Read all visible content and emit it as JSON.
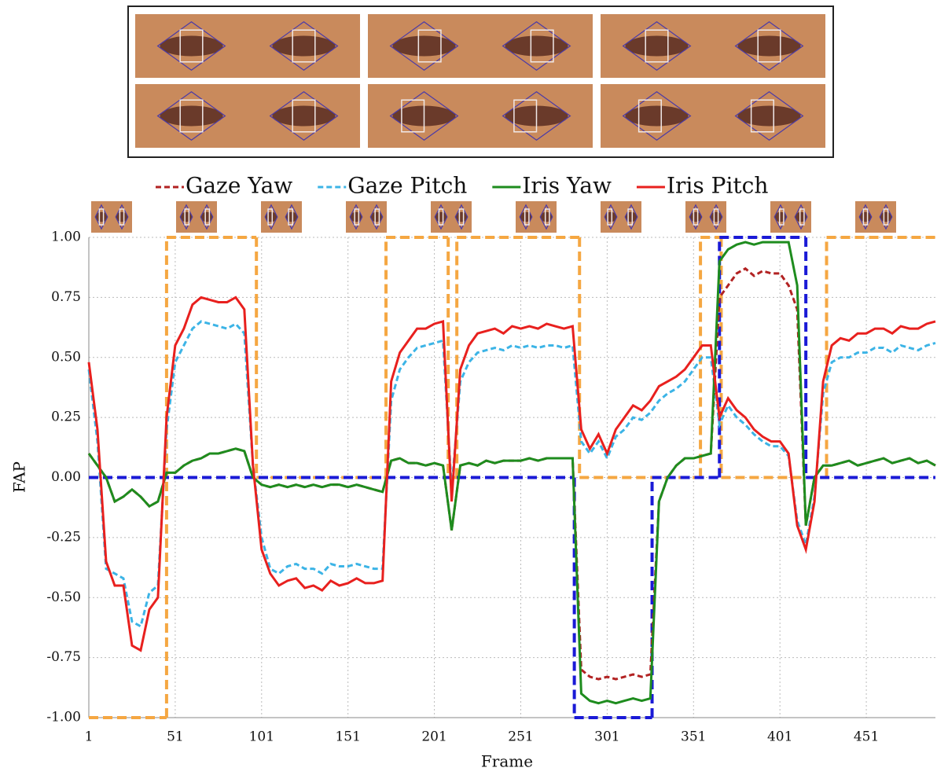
{
  "chart_data": {
    "type": "line",
    "x_label": "Frame",
    "y_label": "FAP",
    "xlim": [
      1,
      491
    ],
    "ylim": [
      -1,
      1
    ],
    "xticks": [
      1,
      51,
      101,
      151,
      201,
      251,
      301,
      351,
      401,
      451
    ],
    "yticks": [
      {
        "value": 1,
        "label": "1.00"
      },
      {
        "value": 0.75,
        "label": "0.75"
      },
      {
        "value": 0.5,
        "label": "0.50"
      },
      {
        "value": 0.25,
        "label": "0.25"
      },
      {
        "value": 0,
        "label": "0.00"
      },
      {
        "value": -0.25,
        "label": "-0.25"
      },
      {
        "value": -0.5,
        "label": "-0.50"
      },
      {
        "value": -0.75,
        "label": "-0.75"
      },
      {
        "value": -1,
        "label": "-1.00"
      }
    ],
    "grid": true,
    "x": [
      1,
      6,
      11,
      16,
      21,
      26,
      31,
      36,
      41,
      46,
      51,
      56,
      61,
      66,
      71,
      76,
      81,
      86,
      91,
      96,
      101,
      106,
      111,
      116,
      121,
      126,
      131,
      136,
      141,
      146,
      151,
      156,
      161,
      166,
      171,
      176,
      181,
      186,
      191,
      196,
      201,
      206,
      211,
      216,
      221,
      226,
      231,
      236,
      241,
      246,
      251,
      256,
      261,
      266,
      271,
      276,
      281,
      286,
      291,
      296,
      301,
      306,
      311,
      316,
      321,
      326,
      331,
      336,
      341,
      346,
      351,
      356,
      361,
      366,
      371,
      376,
      381,
      386,
      391,
      396,
      401,
      406,
      411,
      416,
      421,
      426,
      431,
      436,
      441,
      446,
      451,
      456,
      461,
      466,
      471,
      476,
      481,
      486,
      491
    ],
    "series": [
      {
        "name": "Gaze Yaw",
        "color": "#b22222",
        "dash": true,
        "values": [
          0.1,
          0.05,
          0.0,
          -0.1,
          -0.08,
          -0.05,
          -0.08,
          -0.12,
          -0.1,
          0.02,
          0.02,
          0.05,
          0.07,
          0.08,
          0.1,
          0.1,
          0.11,
          0.12,
          0.11,
          0.0,
          -0.03,
          -0.04,
          -0.03,
          -0.04,
          -0.03,
          -0.04,
          -0.03,
          -0.04,
          -0.03,
          -0.03,
          -0.04,
          -0.03,
          -0.04,
          -0.05,
          -0.06,
          0.07,
          0.08,
          0.06,
          0.06,
          0.05,
          0.06,
          0.05,
          -0.22,
          0.05,
          0.06,
          0.05,
          0.07,
          0.06,
          0.07,
          0.07,
          0.07,
          0.08,
          0.07,
          0.08,
          0.08,
          0.08,
          0.08,
          -0.8,
          -0.83,
          -0.84,
          -0.83,
          -0.84,
          -0.83,
          -0.82,
          -0.83,
          -0.82,
          -0.1,
          0.0,
          0.05,
          0.08,
          0.08,
          0.09,
          0.1,
          0.75,
          0.8,
          0.85,
          0.87,
          0.84,
          0.86,
          0.85,
          0.85,
          0.8,
          0.7,
          -0.2,
          0.0,
          0.05,
          0.05,
          0.06,
          0.07,
          0.05,
          0.06,
          0.07,
          0.08,
          0.06,
          0.07,
          0.08,
          0.06,
          0.07,
          0.05
        ]
      },
      {
        "name": "Gaze Pitch",
        "color": "#3cb4e6",
        "dash": true,
        "values": [
          0.45,
          0.15,
          -0.38,
          -0.4,
          -0.42,
          -0.6,
          -0.62,
          -0.48,
          -0.45,
          0.2,
          0.48,
          0.55,
          0.62,
          0.65,
          0.64,
          0.63,
          0.62,
          0.64,
          0.6,
          0.05,
          -0.25,
          -0.38,
          -0.4,
          -0.37,
          -0.36,
          -0.38,
          -0.38,
          -0.4,
          -0.36,
          -0.37,
          -0.37,
          -0.36,
          -0.37,
          -0.38,
          -0.38,
          0.32,
          0.45,
          0.5,
          0.54,
          0.55,
          0.56,
          0.57,
          -0.05,
          0.4,
          0.48,
          0.52,
          0.53,
          0.54,
          0.53,
          0.55,
          0.54,
          0.55,
          0.54,
          0.55,
          0.55,
          0.54,
          0.55,
          0.15,
          0.1,
          0.15,
          0.08,
          0.17,
          0.2,
          0.25,
          0.24,
          0.27,
          0.32,
          0.35,
          0.37,
          0.4,
          0.45,
          0.5,
          0.5,
          0.22,
          0.3,
          0.25,
          0.22,
          0.18,
          0.15,
          0.13,
          0.13,
          0.09,
          -0.18,
          -0.28,
          -0.08,
          0.35,
          0.48,
          0.5,
          0.5,
          0.52,
          0.52,
          0.54,
          0.54,
          0.52,
          0.55,
          0.54,
          0.53,
          0.55,
          0.56
        ]
      },
      {
        "name": "Iris Yaw",
        "color": "#1e8c1e",
        "dash": false,
        "values": [
          0.1,
          0.05,
          0.0,
          -0.1,
          -0.08,
          -0.05,
          -0.08,
          -0.12,
          -0.1,
          0.02,
          0.02,
          0.05,
          0.07,
          0.08,
          0.1,
          0.1,
          0.11,
          0.12,
          0.11,
          0.0,
          -0.03,
          -0.04,
          -0.03,
          -0.04,
          -0.03,
          -0.04,
          -0.03,
          -0.04,
          -0.03,
          -0.03,
          -0.04,
          -0.03,
          -0.04,
          -0.05,
          -0.06,
          0.07,
          0.08,
          0.06,
          0.06,
          0.05,
          0.06,
          0.05,
          -0.22,
          0.05,
          0.06,
          0.05,
          0.07,
          0.06,
          0.07,
          0.07,
          0.07,
          0.08,
          0.07,
          0.08,
          0.08,
          0.08,
          0.08,
          -0.9,
          -0.93,
          -0.94,
          -0.93,
          -0.94,
          -0.93,
          -0.92,
          -0.93,
          -0.92,
          -0.1,
          0.0,
          0.05,
          0.08,
          0.08,
          0.09,
          0.1,
          0.9,
          0.95,
          0.97,
          0.98,
          0.97,
          0.98,
          0.98,
          0.98,
          0.98,
          0.8,
          -0.2,
          0.0,
          0.05,
          0.05,
          0.06,
          0.07,
          0.05,
          0.06,
          0.07,
          0.08,
          0.06,
          0.07,
          0.08,
          0.06,
          0.07,
          0.05
        ]
      },
      {
        "name": "Iris Pitch",
        "color": "#e8201e",
        "dash": false,
        "values": [
          0.48,
          0.2,
          -0.35,
          -0.45,
          -0.45,
          -0.7,
          -0.72,
          -0.55,
          -0.5,
          0.25,
          0.55,
          0.62,
          0.72,
          0.75,
          0.74,
          0.73,
          0.73,
          0.75,
          0.7,
          0.05,
          -0.3,
          -0.4,
          -0.45,
          -0.43,
          -0.42,
          -0.46,
          -0.45,
          -0.47,
          -0.43,
          -0.45,
          -0.44,
          -0.42,
          -0.44,
          -0.44,
          -0.43,
          0.4,
          0.52,
          0.57,
          0.62,
          0.62,
          0.64,
          0.65,
          -0.1,
          0.45,
          0.55,
          0.6,
          0.61,
          0.62,
          0.6,
          0.63,
          0.62,
          0.63,
          0.62,
          0.64,
          0.63,
          0.62,
          0.63,
          0.2,
          0.12,
          0.18,
          0.1,
          0.2,
          0.25,
          0.3,
          0.28,
          0.32,
          0.38,
          0.4,
          0.42,
          0.45,
          0.5,
          0.55,
          0.55,
          0.25,
          0.33,
          0.28,
          0.25,
          0.2,
          0.17,
          0.15,
          0.15,
          0.1,
          -0.2,
          -0.3,
          -0.1,
          0.4,
          0.55,
          0.58,
          0.57,
          0.6,
          0.6,
          0.62,
          0.62,
          0.6,
          0.63,
          0.62,
          0.62,
          0.64,
          0.65
        ]
      }
    ],
    "steps": [
      {
        "color": "#f5a742",
        "x": [
          1,
          46,
          98,
          173,
          209,
          214,
          285,
          355,
          367,
          428,
          491
        ],
        "values": [
          -1,
          1,
          0,
          1,
          0,
          1,
          0,
          1,
          0,
          1,
          1
        ]
      },
      {
        "color": "#1a1ad6",
        "x": [
          1,
          282,
          327,
          366,
          416,
          491
        ],
        "values": [
          0,
          -1,
          0,
          1,
          0,
          0
        ]
      }
    ]
  }
}
